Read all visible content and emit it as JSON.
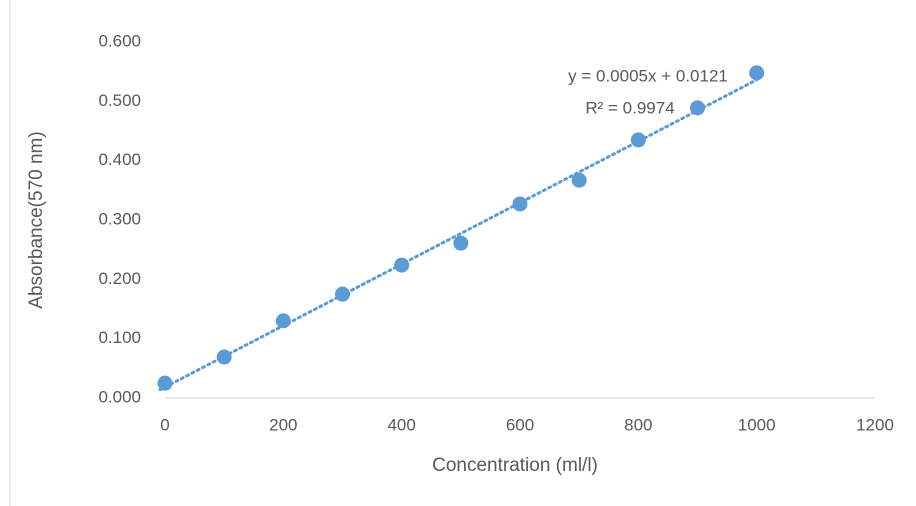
{
  "chart_data": {
    "type": "scatter",
    "x_label": "Concentration (ml/l)",
    "y_label": "Absorbance(570 nm)",
    "x": [
      0,
      100,
      200,
      300,
      400,
      500,
      600,
      700,
      800,
      900,
      1000
    ],
    "series": [
      {
        "color": "#5b9bd5",
        "values": [
          0.025,
          0.069,
          0.13,
          0.175,
          0.224,
          0.261,
          0.327,
          0.367,
          0.435,
          0.489,
          0.548
        ]
      }
    ],
    "trendline": {
      "equation": "y = 0.0005x + 0.0121",
      "r_squared": "R² = 0.9974"
    },
    "xlim": [
      0,
      1200
    ],
    "xticks": [
      0,
      200,
      400,
      600,
      800,
      1000,
      1200
    ],
    "ylim": [
      0,
      0.6
    ],
    "yticks": [
      {
        "value": 0,
        "label": "0.000"
      },
      {
        "value": 0.1,
        "label": "0.100"
      },
      {
        "value": 0.2,
        "label": "0.200"
      },
      {
        "value": 0.3,
        "label": "0.300"
      },
      {
        "value": 0.4,
        "label": "0.400"
      },
      {
        "value": 0.5,
        "label": "0.500"
      },
      {
        "value": 0.6,
        "label": "0.600"
      }
    ],
    "grid": false
  }
}
